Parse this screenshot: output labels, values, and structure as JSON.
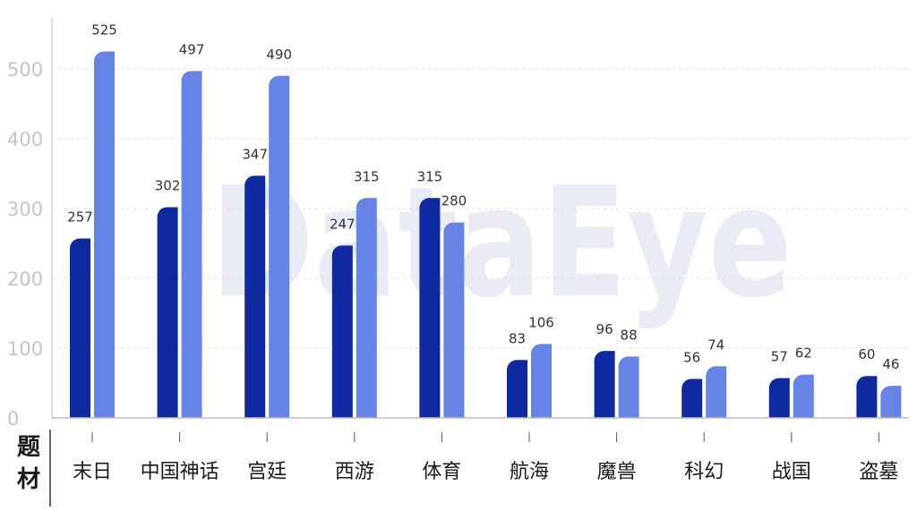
{
  "watermark": "DataEye",
  "chart_data": {
    "type": "bar",
    "xlabel": "题材",
    "ylabel": "",
    "ylim": [
      0,
      560
    ],
    "yticks": [
      0,
      100,
      200,
      300,
      400,
      500
    ],
    "grid": "horizontal-dashed",
    "legend": "none",
    "categories": [
      "末日",
      "中国神话",
      "宫廷",
      "西游",
      "体育",
      "航海",
      "魔兽",
      "科幻",
      "战国",
      "盗墓"
    ],
    "series": [
      {
        "color": "#0f2aa0",
        "values": [
          257,
          302,
          347,
          247,
          315,
          83,
          96,
          56,
          57,
          60
        ]
      },
      {
        "color": "#6683e6",
        "values": [
          525,
          497,
          490,
          315,
          280,
          106,
          88,
          74,
          62,
          46
        ]
      }
    ]
  }
}
